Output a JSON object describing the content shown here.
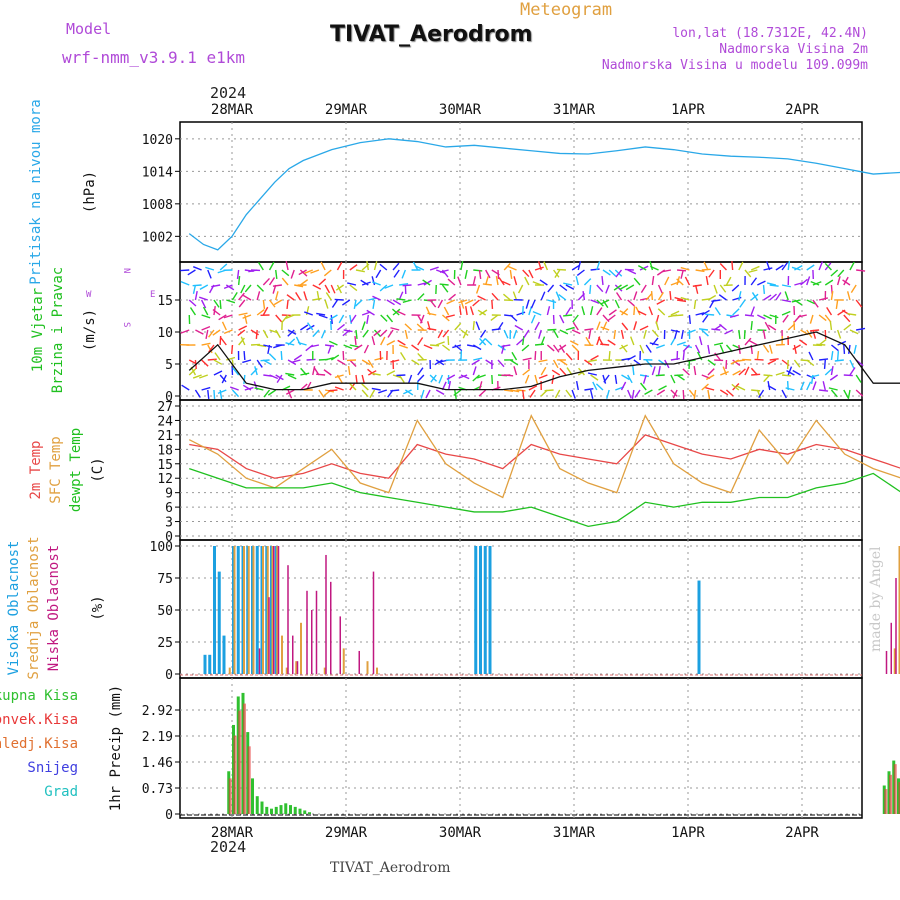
{
  "header": {
    "model_label": "Model",
    "model_value": "wrf-nmm_v3.9.1 e1km",
    "kind": "Meteogram",
    "title": "TIVAT_Aerodrom",
    "lonlat": "lon,lat (18.7312E, 42.4N)",
    "altitude": "Nadmorska Visina 2m",
    "model_altitude": "Nadmorska Visina u modelu 109.099m",
    "year": "2024",
    "footer": "TIVAT_Aerodrom",
    "credit": "made by Angel"
  },
  "colors": {
    "pressure": "#2aa8e8",
    "t2m": "#e84848",
    "sfc": "#e0a040",
    "dew": "#20c020",
    "high_cloud": "#1ca0e0",
    "mid_cloud": "#e0a040",
    "low_cloud": "#c01880",
    "total_precip": "#30c030",
    "conv_precip": "#e83838",
    "snow": "#4040e0",
    "hail": "#20c0c0",
    "frozen": "#e07030"
  },
  "chart_data": [
    {
      "type": "line",
      "name": "pressure",
      "ylabel": "Pritisak na nivou mora",
      "unit": "(hPa)",
      "ylim": [
        998,
        1022
      ],
      "yticks": [
        1002,
        1008,
        1014,
        1020
      ],
      "x_days": [
        "28MAR",
        "29MAR",
        "30MAR",
        "31MAR",
        "1APR",
        "2APR"
      ],
      "grid": true,
      "x": [
        0,
        3,
        6,
        9,
        12,
        15,
        18,
        21,
        24,
        30,
        36,
        42,
        48,
        54,
        60,
        66,
        72,
        78,
        84,
        90,
        96,
        102,
        108,
        114,
        120,
        126,
        132,
        138,
        144,
        150,
        156,
        162,
        168
      ],
      "values": [
        1002.5,
        1000.5,
        999.5,
        1002,
        1006,
        1009,
        1012,
        1014.5,
        1016,
        1018,
        1019.3,
        1020,
        1019.5,
        1018.5,
        1018.8,
        1018.3,
        1017.8,
        1017.3,
        1017.2,
        1017.8,
        1018.5,
        1018.0,
        1017.2,
        1016.8,
        1016.6,
        1016.3,
        1015.5,
        1014.5,
        1013.5,
        1013.8,
        1015.0,
        1015.6,
        1015.4
      ]
    },
    {
      "type": "line",
      "name": "wind",
      "ylabel": "10m Vjetar Brzina i Pravac",
      "unit": "(m/s)",
      "ylim": [
        0,
        20
      ],
      "yticks": [
        0,
        5,
        10,
        15
      ],
      "compass": [
        "N",
        "W",
        "E",
        "S"
      ],
      "x": [
        0,
        6,
        12,
        18,
        24,
        30,
        36,
        42,
        48,
        54,
        60,
        66,
        72,
        78,
        84,
        90,
        96,
        102,
        108,
        114,
        120,
        126,
        132,
        138,
        144,
        150,
        156,
        162,
        168
      ],
      "values": [
        4,
        8,
        2,
        1,
        1,
        2,
        2,
        2,
        2,
        1,
        1,
        1,
        1.5,
        3,
        4,
        4.5,
        5,
        5,
        6,
        7,
        8,
        9,
        10,
        8,
        2,
        2,
        2,
        2,
        3
      ]
    },
    {
      "type": "line",
      "name": "temperature",
      "ylabel": "2m Temp",
      "ylabel2": "SFC Temp",
      "ylabel3": "dewpt Temp",
      "unit": "(C)",
      "ylim": [
        0,
        27
      ],
      "yticks": [
        0,
        3,
        6,
        9,
        12,
        15,
        18,
        21,
        24,
        27
      ],
      "x": [
        0,
        6,
        12,
        18,
        24,
        30,
        36,
        42,
        48,
        54,
        60,
        66,
        72,
        78,
        84,
        90,
        96,
        102,
        108,
        114,
        120,
        126,
        132,
        138,
        144,
        150,
        156,
        162,
        168
      ],
      "series": [
        {
          "name": "2m Temp",
          "values": [
            19,
            18,
            14,
            12,
            13,
            15,
            13,
            12,
            19,
            17,
            16,
            14,
            19,
            17,
            16,
            15,
            21,
            19,
            17,
            16,
            18,
            17,
            19,
            18,
            16,
            14,
            16,
            15,
            16
          ]
        },
        {
          "name": "SFC Temp",
          "values": [
            20,
            17,
            12,
            10,
            14,
            18,
            11,
            9,
            24,
            15,
            11,
            8,
            25,
            14,
            11,
            9,
            25,
            15,
            11,
            9,
            22,
            15,
            24,
            17,
            14,
            12,
            24,
            16,
            22
          ]
        },
        {
          "name": "dewpt Temp",
          "values": [
            14,
            12,
            10,
            10,
            10,
            11,
            9,
            8,
            7,
            6,
            5,
            5,
            6,
            4,
            2,
            3,
            7,
            6,
            7,
            7,
            8,
            8,
            10,
            11,
            13,
            9,
            10,
            11,
            11
          ]
        }
      ]
    },
    {
      "type": "bar",
      "name": "cloud",
      "ylabel": "Visoka Oblacnost",
      "ylabel2": "Srednja Oblacnost",
      "ylabel3": "Niska Oblacnost",
      "unit": "(%)",
      "ylim": [
        0,
        100
      ],
      "yticks": [
        0,
        25,
        50,
        75,
        100
      ],
      "series": [
        {
          "name": "Visoka Oblacnost",
          "x": [
            3,
            4,
            5,
            6,
            7,
            9,
            10,
            11,
            12,
            13,
            14,
            15,
            16,
            17,
            18,
            60,
            61,
            62,
            63,
            107,
            150,
            151,
            152,
            153,
            154,
            155
          ],
          "values": [
            15,
            15,
            100,
            80,
            30,
            100,
            100,
            100,
            100,
            100,
            100,
            100,
            100,
            100,
            100,
            100,
            100,
            100,
            100,
            73,
            20,
            30,
            100,
            90,
            100,
            40
          ]
        },
        {
          "name": "Srednja Oblacnost",
          "x": [
            8,
            9,
            11,
            12,
            13,
            15,
            16,
            17,
            18,
            19,
            20,
            22,
            23,
            28,
            32,
            37,
            39,
            148,
            149,
            150,
            151,
            152,
            154,
            156,
            158,
            159
          ],
          "values": [
            5,
            100,
            100,
            100,
            100,
            100,
            100,
            100,
            100,
            30,
            5,
            10,
            40,
            5,
            20,
            10,
            5,
            20,
            100,
            100,
            100,
            90,
            100,
            100,
            60,
            5
          ]
        },
        {
          "name": "Niska Oblacnost",
          "x": [
            14,
            16,
            17,
            18,
            20,
            21,
            22,
            24,
            25,
            26,
            28,
            29,
            31,
            35,
            38,
            146,
            147,
            148,
            149,
            150,
            151,
            152,
            153,
            154,
            155,
            156,
            157,
            160,
            164,
            165
          ],
          "values": [
            20,
            60,
            100,
            100,
            85,
            30,
            10,
            65,
            50,
            65,
            93,
            72,
            45,
            18,
            80,
            18,
            40,
            75,
            100,
            80,
            100,
            100,
            100,
            100,
            100,
            20,
            10,
            10,
            8,
            5
          ]
        }
      ]
    },
    {
      "type": "bar",
      "name": "precipitation",
      "ylabel": "1hr Precip (mm)",
      "legend": [
        "Ukupna Kisa",
        "Konvek.Kisa",
        "Zaledj.Kisa",
        "Snijeg",
        "Grad"
      ],
      "ylim": [
        0,
        3.65
      ],
      "yticks": [
        0,
        0.73,
        1.46,
        2.19,
        2.92
      ],
      "series": [
        {
          "name": "Ukupna Kisa",
          "x": [
            8,
            9,
            10,
            11,
            12,
            13,
            14,
            15,
            16,
            17,
            18,
            19,
            20,
            21,
            22,
            23,
            24,
            25,
            146,
            147,
            148,
            149,
            150,
            151,
            152,
            153
          ],
          "values": [
            1.2,
            2.5,
            3.3,
            3.4,
            2.3,
            1.0,
            0.5,
            0.35,
            0.2,
            0.15,
            0.2,
            0.25,
            0.3,
            0.25,
            0.2,
            0.15,
            0.1,
            0.05,
            0.8,
            1.2,
            1.5,
            1.0,
            0.6,
            0.8,
            0.6,
            0.35
          ]
        },
        {
          "name": "Konvek.Kisa",
          "x": [
            8,
            9,
            10,
            11,
            12,
            146,
            147,
            148,
            149,
            150
          ],
          "values": [
            1.0,
            2.2,
            2.9,
            3.1,
            1.9,
            0.7,
            1.1,
            1.4,
            0.9,
            0.5
          ]
        }
      ]
    }
  ]
}
